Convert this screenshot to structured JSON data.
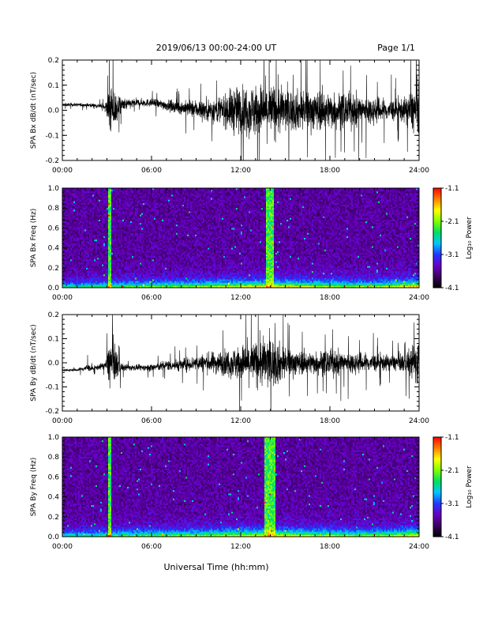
{
  "header": {
    "title": "2019/06/13  00:00-24:00 UT",
    "page": "Page 1/1"
  },
  "xlabel": "Universal Time (hh:mm)",
  "colorbar": {
    "label": "Log₁₀ Power",
    "ticks": [
      "-1.1",
      "-2.1",
      "-3.1",
      "-4.1"
    ],
    "range": [
      -4.1,
      -1.1
    ],
    "colors": [
      "#000000",
      "#3a0060",
      "#6a00c8",
      "#2038ff",
      "#00c8ff",
      "#00e060",
      "#80ff00",
      "#ffff00",
      "#ff8000",
      "#ff0000"
    ]
  },
  "chart_data": [
    {
      "type": "line",
      "ylabel": "SPA Bx dB/dt (nT/sec)",
      "ylim": [
        -0.2,
        0.2
      ],
      "yticks": [
        "0.2",
        "0.1",
        "0.0",
        "-0.1",
        "-0.2"
      ],
      "xticks": [
        "00:00",
        "06:00",
        "12:00",
        "18:00",
        "24:00"
      ],
      "xrange_hours": [
        0,
        24
      ],
      "envelope": {
        "hours": [
          0,
          1,
          2,
          2.9,
          3.2,
          3.5,
          4,
          5,
          6,
          7,
          8,
          9,
          10,
          11,
          11.5,
          12,
          13,
          13.5,
          14,
          14.5,
          15,
          16,
          17,
          18,
          19,
          20,
          21,
          22,
          23,
          23.5,
          24
        ],
        "amplitude": [
          0.012,
          0.012,
          0.015,
          0.02,
          0.2,
          0.16,
          0.05,
          0.03,
          0.03,
          0.04,
          0.05,
          0.07,
          0.09,
          0.12,
          0.18,
          0.18,
          0.2,
          0.2,
          0.2,
          0.2,
          0.16,
          0.15,
          0.15,
          0.14,
          0.13,
          0.12,
          0.1,
          0.08,
          0.09,
          0.16,
          0.2
        ],
        "offset": [
          0.022,
          0.022,
          0.02,
          0.015,
          0.0,
          0.0,
          0.02,
          0.03,
          0.03,
          0.02,
          0.01,
          0.005,
          0.0,
          0.0,
          0.0,
          0.0,
          0.0,
          0.0,
          0.0,
          0.0,
          0.0,
          0.0,
          0.0,
          0.0,
          0.0,
          0.0,
          0.0,
          0.0,
          0.0,
          0.0,
          0.0
        ]
      }
    },
    {
      "type": "heatmap",
      "ylabel": "SPA Bx Freq (Hz)",
      "ylim": [
        0,
        1.0
      ],
      "yticks": [
        "1.0",
        "0.8",
        "0.6",
        "0.4",
        "0.2",
        "0.0"
      ],
      "xticks": [
        "00:00",
        "06:00",
        "12:00",
        "18:00",
        "24:00"
      ],
      "xrange_hours": [
        0,
        24
      ],
      "bright_columns_hours": [
        [
          3.05,
          3.3
        ],
        [
          13.7,
          14.2
        ]
      ]
    },
    {
      "type": "line",
      "ylabel": "SPA By dB/dt (nT/sec)",
      "ylim": [
        -0.2,
        0.2
      ],
      "yticks": [
        "0.2",
        "0.1",
        "0.0",
        "-0.1",
        "-0.2"
      ],
      "xticks": [
        "00:00",
        "06:00",
        "12:00",
        "18:00",
        "24:00"
      ],
      "xrange_hours": [
        0,
        24
      ],
      "envelope": {
        "hours": [
          0,
          1,
          1.7,
          2,
          2.9,
          3.2,
          3.5,
          4,
          5,
          6,
          7,
          8,
          9,
          10,
          11,
          11.5,
          12,
          13,
          13.5,
          14,
          14.5,
          15,
          16,
          17,
          18,
          19,
          20,
          21,
          22,
          23,
          23.5,
          24
        ],
        "amplitude": [
          0.01,
          0.01,
          0.03,
          0.015,
          0.03,
          0.2,
          0.15,
          0.03,
          0.02,
          0.03,
          0.04,
          0.05,
          0.06,
          0.08,
          0.1,
          0.12,
          0.14,
          0.17,
          0.2,
          0.2,
          0.17,
          0.12,
          0.09,
          0.09,
          0.1,
          0.09,
          0.08,
          0.07,
          0.06,
          0.07,
          0.13,
          0.2
        ],
        "offset": [
          -0.03,
          -0.03,
          -0.02,
          -0.025,
          -0.01,
          0.0,
          0.0,
          -0.02,
          -0.02,
          -0.02,
          -0.01,
          -0.01,
          0.0,
          0.0,
          0.0,
          0.0,
          0.0,
          0.0,
          0.0,
          0.0,
          0.0,
          0.0,
          0.0,
          0.0,
          0.0,
          0.0,
          0.0,
          0.0,
          0.0,
          0.0,
          0.0,
          0.0
        ]
      }
    },
    {
      "type": "heatmap",
      "ylabel": "SPA By Freq (Hz)",
      "ylim": [
        0,
        1.0
      ],
      "yticks": [
        "1.0",
        "0.8",
        "0.6",
        "0.4",
        "0.2",
        "0.0"
      ],
      "xticks": [
        "00:00",
        "06:00",
        "12:00",
        "18:00",
        "24:00"
      ],
      "xrange_hours": [
        0,
        24
      ],
      "bright_columns_hours": [
        [
          3.05,
          3.3
        ],
        [
          13.6,
          14.3
        ]
      ]
    }
  ]
}
